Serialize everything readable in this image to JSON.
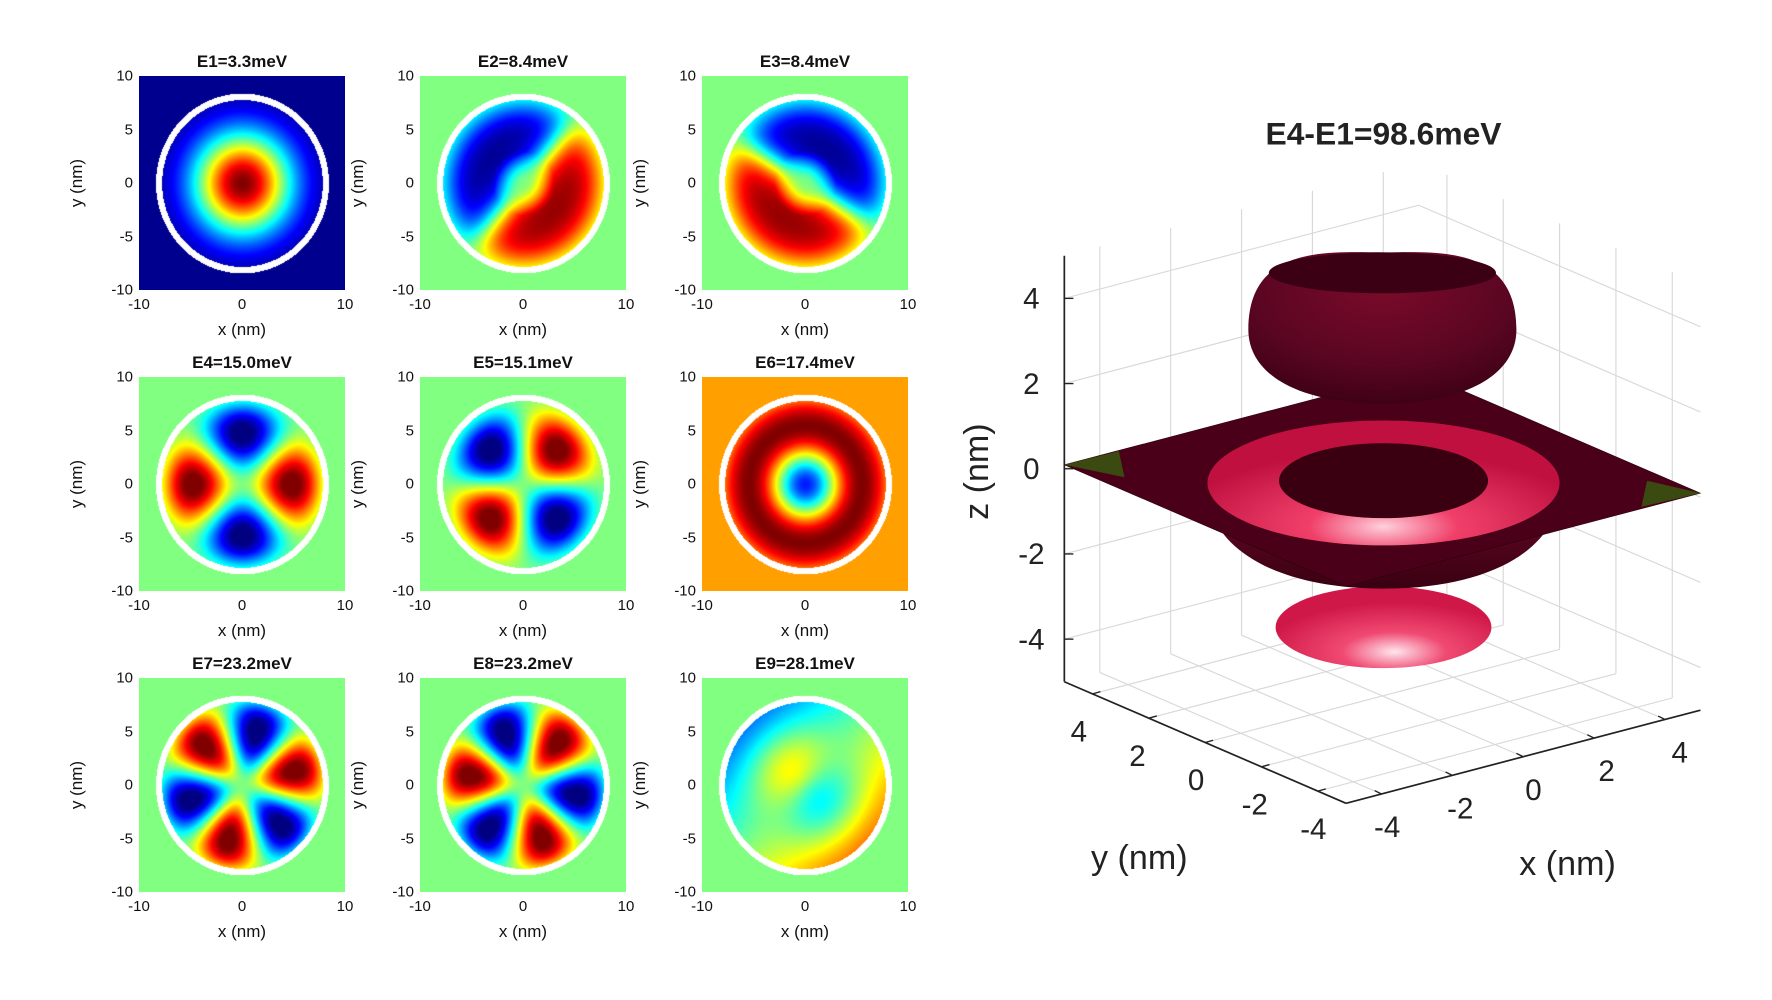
{
  "chart_data": [
    {
      "type": "heatmap",
      "title": "E1=3.3meV",
      "mode": "ground-state gaussian",
      "background": "#00008f",
      "xlabel": "x (nm)",
      "ylabel": "y (nm)",
      "xlim": [
        -10,
        10
      ],
      "ylim": [
        -10,
        10
      ],
      "xticks": [
        "-10",
        "0",
        "10"
      ],
      "yticks": [
        "10",
        "5",
        "0",
        "-5",
        "-10"
      ],
      "colormap": "jet"
    },
    {
      "type": "heatmap",
      "title": "E2=8.4meV",
      "mode": "p-like, blue upper-left, red lower-right",
      "background": "#80ff80",
      "xlabel": "x (nm)",
      "ylabel": "y (nm)",
      "xlim": [
        -10,
        10
      ],
      "ylim": [
        -10,
        10
      ],
      "xticks": [
        "-10",
        "0",
        "10"
      ],
      "yticks": [
        "10",
        "5",
        "0",
        "-5",
        "-10"
      ],
      "colormap": "jet"
    },
    {
      "type": "heatmap",
      "title": "E3=8.4meV",
      "mode": "p-like, blue upper-right, red lower-left",
      "background": "#80ff80",
      "xlabel": "x (nm)",
      "ylabel": "y (nm)",
      "xlim": [
        -10,
        10
      ],
      "ylim": [
        -10,
        10
      ],
      "xticks": [
        "-10",
        "0",
        "10"
      ],
      "yticks": [
        "10",
        "5",
        "0",
        "-5",
        "-10"
      ],
      "colormap": "jet"
    },
    {
      "type": "heatmap",
      "title": "E4=15.0meV",
      "mode": "d-like, red left/right, blue top/bottom",
      "background": "#80ff80",
      "xlabel": "x (nm)",
      "ylabel": "y (nm)",
      "xlim": [
        -10,
        10
      ],
      "ylim": [
        -10,
        10
      ],
      "xticks": [
        "-10",
        "0",
        "10"
      ],
      "yticks": [
        "10",
        "5",
        "0",
        "-5",
        "-10"
      ],
      "colormap": "jet"
    },
    {
      "type": "heatmap",
      "title": "E5=15.1meV",
      "mode": "d-like, four diagonal lobes",
      "background": "#80ff80",
      "xlabel": "x (nm)",
      "ylabel": "y (nm)",
      "xlim": [
        -10,
        10
      ],
      "ylim": [
        -10,
        10
      ],
      "xticks": [
        "-10",
        "0",
        "10"
      ],
      "yticks": [
        "10",
        "5",
        "0",
        "-5",
        "-10"
      ],
      "colormap": "jet"
    },
    {
      "type": "heatmap",
      "title": "E6=17.4meV",
      "mode": "radial ring, blue center",
      "background": "#ffa000",
      "xlabel": "x (nm)",
      "ylabel": "y (nm)",
      "xlim": [
        -10,
        10
      ],
      "ylim": [
        -10,
        10
      ],
      "xticks": [
        "-10",
        "0",
        "10"
      ],
      "yticks": [
        "10",
        "5",
        "0",
        "-5",
        "-10"
      ],
      "colormap": "jet"
    },
    {
      "type": "heatmap",
      "title": "E7=23.2meV",
      "mode": "six-lobe f-like",
      "background": "#80ff80",
      "xlabel": "x (nm)",
      "ylabel": "y (nm)",
      "xlim": [
        -10,
        10
      ],
      "ylim": [
        -10,
        10
      ],
      "xticks": [
        "-10",
        "0",
        "10"
      ],
      "yticks": [
        "10",
        "5",
        "0",
        "-5",
        "-10"
      ],
      "colormap": "jet"
    },
    {
      "type": "heatmap",
      "title": "E8=23.2meV",
      "mode": "six-lobe f-like, rotated",
      "background": "#80ff80",
      "xlabel": "x (nm)",
      "ylabel": "y (nm)",
      "xlim": [
        -10,
        10
      ],
      "ylim": [
        -10,
        10
      ],
      "xticks": [
        "-10",
        "0",
        "10"
      ],
      "yticks": [
        "10",
        "5",
        "0",
        "-5",
        "-10"
      ],
      "colormap": "jet"
    },
    {
      "type": "heatmap",
      "title": "E9=28.1meV",
      "mode": "p-like with radial node",
      "background": "#80ff80",
      "xlabel": "x (nm)",
      "ylabel": "y (nm)",
      "xlim": [
        -10,
        10
      ],
      "ylim": [
        -10,
        10
      ],
      "xticks": [
        "-10",
        "0",
        "10"
      ],
      "yticks": [
        "10",
        "5",
        "0",
        "-5",
        "-10"
      ],
      "colormap": "jet"
    },
    {
      "type": "surface3d",
      "title": "E4-E1=98.6meV",
      "xlabel": "x (nm)",
      "ylabel": "y (nm)",
      "zlabel": "z (nm)",
      "xticks": [
        "-4",
        "-2",
        "0",
        "2",
        "4"
      ],
      "yticks": [
        "4",
        "2",
        "0",
        "-2",
        "-4"
      ],
      "zticks": [
        "4",
        "2",
        "0",
        "-2",
        "-4"
      ],
      "xlim": [
        -5,
        5
      ],
      "ylim": [
        -5,
        5
      ],
      "zlim": [
        -5,
        5
      ],
      "grid": true,
      "surface_color": "#e8204f",
      "shadow_color": "#4a0018",
      "plane_corner_color": "#3a4a10"
    }
  ]
}
